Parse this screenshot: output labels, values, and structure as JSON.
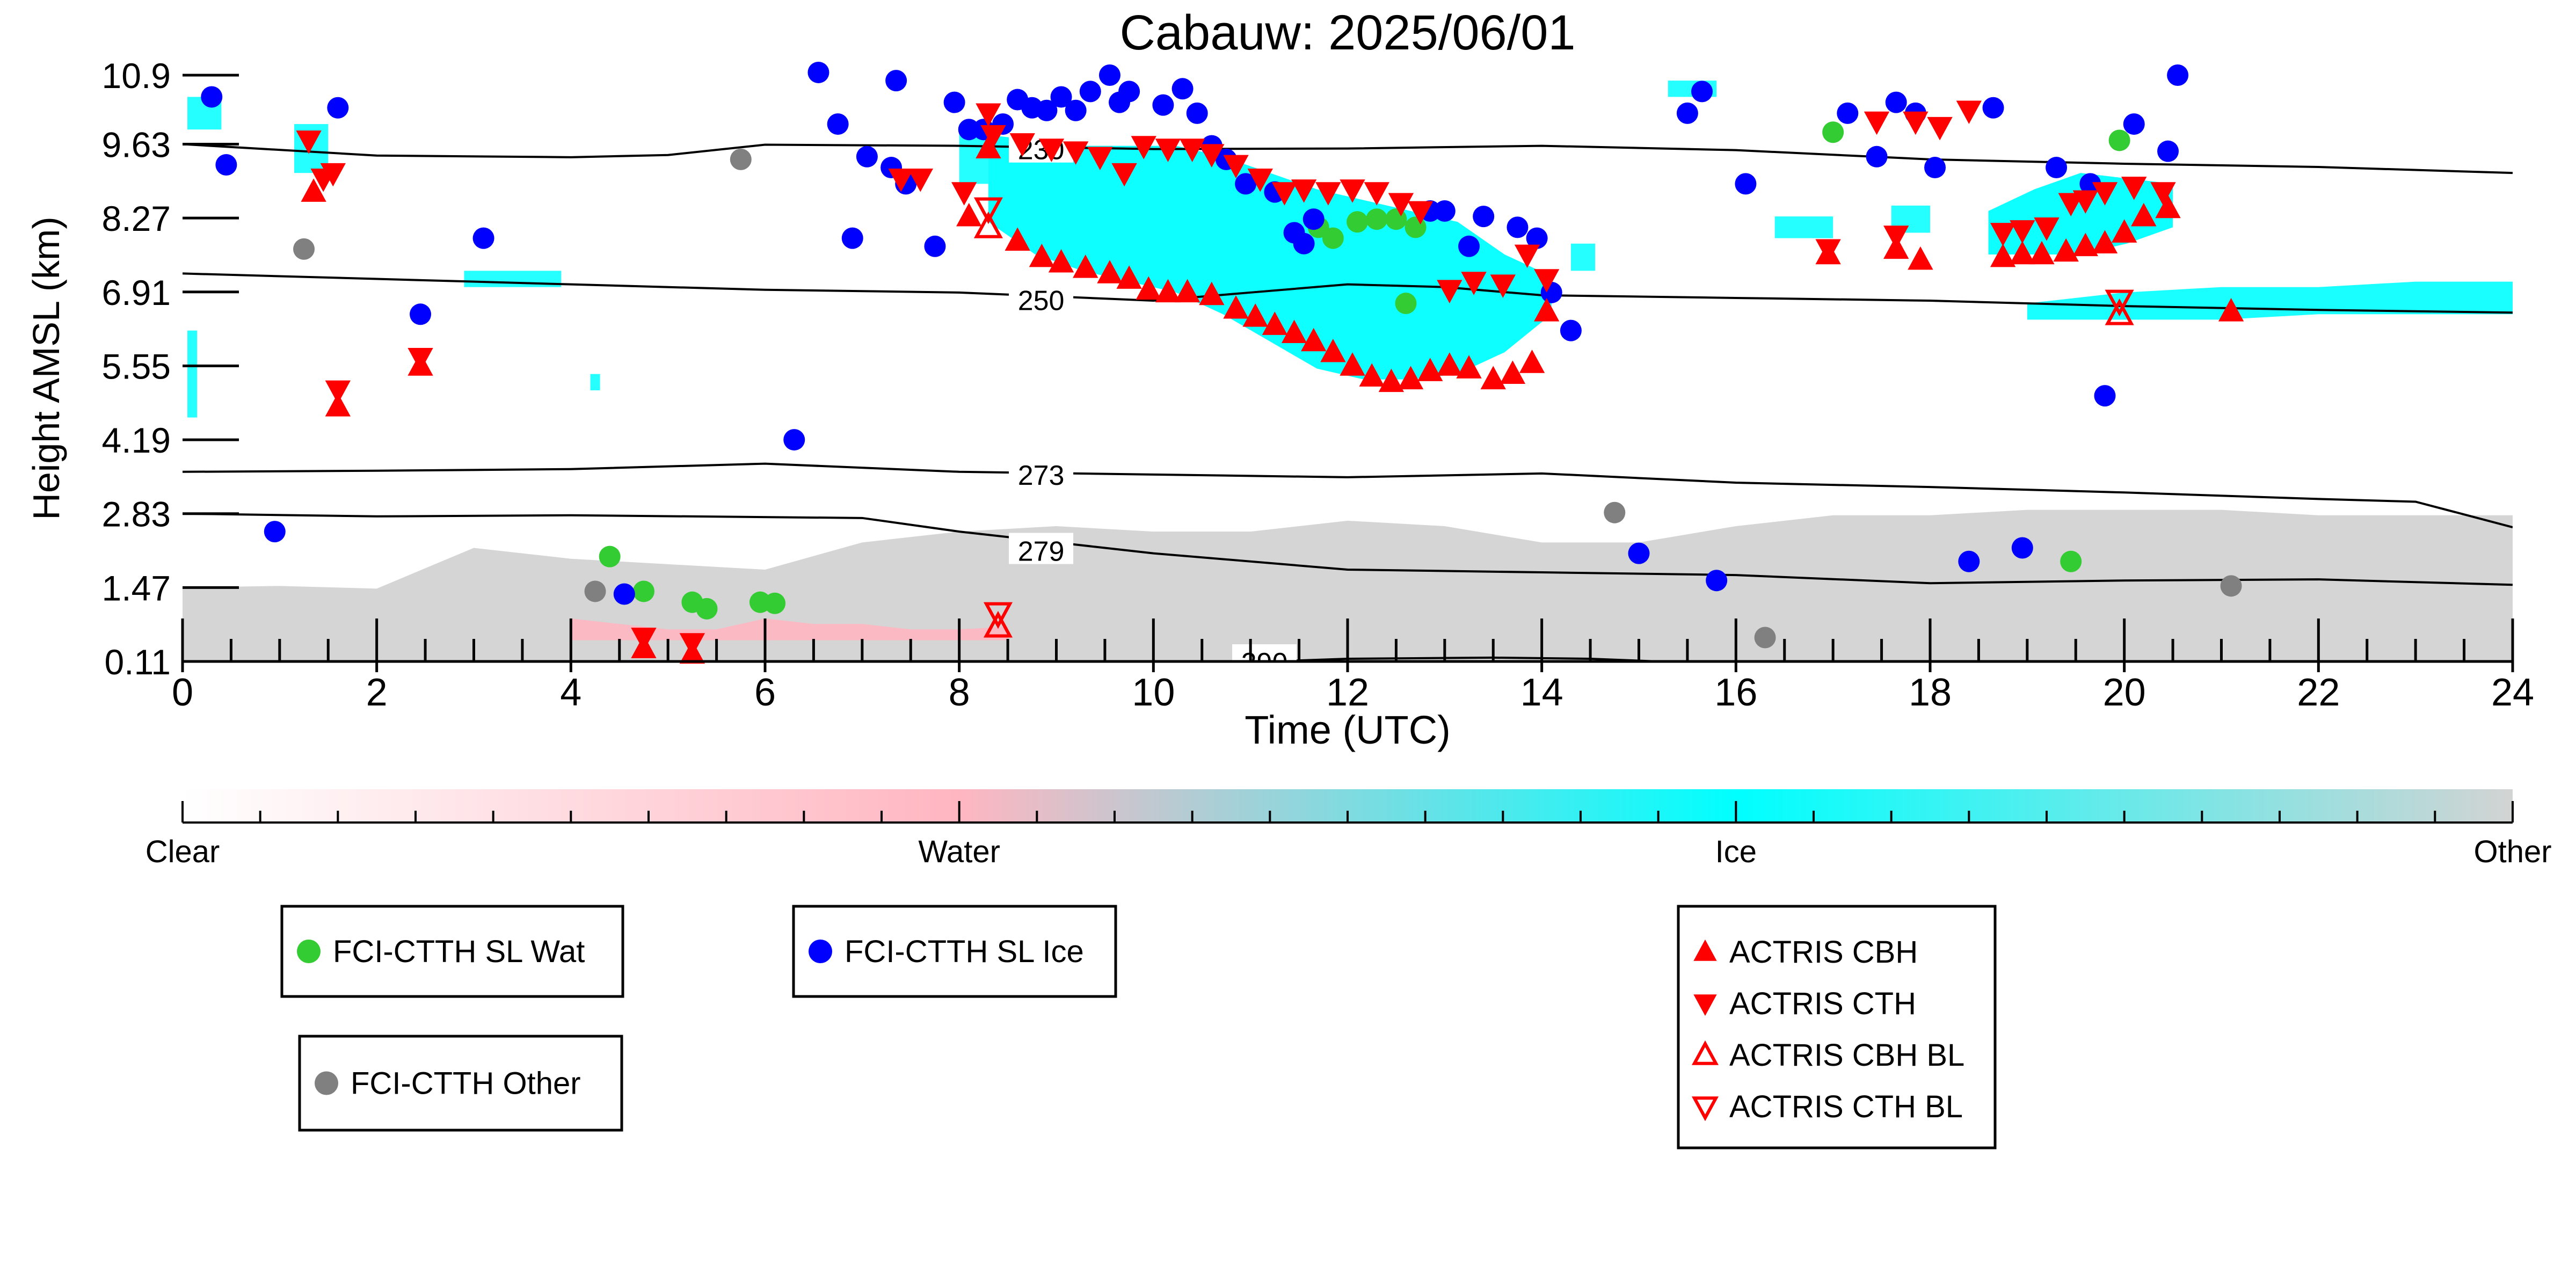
{
  "chart_data": {
    "type": "scatter",
    "title": "Cabauw: 2025/06/01",
    "xlabel": "Time (UTC)",
    "ylabel": "Height AMSL (km)",
    "xlim": [
      0,
      24
    ],
    "ylim": [
      0.11,
      10.9
    ],
    "x_ticks": [
      "0",
      "2",
      "4",
      "6",
      "8",
      "10",
      "12",
      "14",
      "16",
      "18",
      "20",
      "22",
      "24"
    ],
    "y_ticks": [
      "0.11",
      "1.47",
      "2.83",
      "4.19",
      "5.55",
      "6.91",
      "8.27",
      "9.63",
      "10.9"
    ],
    "colorbar": {
      "labels": [
        "Clear",
        "Water",
        "Ice",
        "Other"
      ],
      "colors": [
        "#ffffff",
        "#ffb6c1",
        "#00ffff",
        "#d3d3d3"
      ]
    },
    "isotherms": [
      {
        "label": "230",
        "x": [
          0,
          2,
          4,
          5,
          6,
          8,
          10,
          12,
          14,
          16,
          18,
          20,
          22,
          24
        ],
        "y": [
          9.63,
          9.42,
          9.39,
          9.43,
          9.62,
          9.6,
          9.54,
          9.55,
          9.6,
          9.52,
          9.35,
          9.27,
          9.21,
          9.1
        ]
      },
      {
        "label": "250",
        "x": [
          0,
          2,
          4,
          6,
          8,
          10,
          11,
          12,
          13,
          14,
          16,
          18,
          20,
          22,
          24
        ],
        "y": [
          7.25,
          7.15,
          7.05,
          6.95,
          6.9,
          6.75,
          6.9,
          7.05,
          7.0,
          6.85,
          6.8,
          6.75,
          6.65,
          6.58,
          6.53
        ]
      },
      {
        "label": "273",
        "x": [
          0,
          2,
          4,
          6,
          8,
          10,
          12,
          14,
          16,
          18,
          20,
          22,
          23,
          24
        ],
        "y": [
          3.6,
          3.62,
          3.65,
          3.75,
          3.6,
          3.55,
          3.5,
          3.57,
          3.4,
          3.32,
          3.22,
          3.1,
          3.05,
          2.58
        ]
      },
      {
        "label": "279",
        "x": [
          0,
          2,
          4,
          7,
          8,
          10,
          12,
          14,
          16,
          18,
          20,
          22,
          24
        ],
        "y": [
          2.83,
          2.78,
          2.8,
          2.75,
          2.5,
          2.1,
          1.8,
          1.75,
          1.7,
          1.55,
          1.6,
          1.62,
          1.52
        ]
      },
      {
        "label": "290",
        "x": [
          11.2,
          12,
          13.5,
          14.5,
          15.2
        ],
        "y": [
          0.11,
          0.16,
          0.18,
          0.16,
          0.11
        ]
      }
    ],
    "series": [
      {
        "name": "FCI-CTTH SL Wat",
        "marker": "circle",
        "color": "#33cc33",
        "x": [
          4.4,
          4.75,
          5.25,
          5.4,
          5.95,
          6.1,
          11.7,
          11.85,
          12.1,
          12.3,
          12.5,
          12.7,
          12.6,
          17.0,
          19.45,
          19.95
        ],
        "y": [
          2.04,
          1.4,
          1.2,
          1.08,
          1.2,
          1.18,
          8.1,
          7.9,
          8.2,
          8.25,
          8.25,
          8.1,
          6.7,
          9.85,
          1.95,
          9.7
        ]
      },
      {
        "name": "FCI-CTTH SL Ice",
        "marker": "circle",
        "color": "#0000ff",
        "x": [
          0.3,
          0.45,
          0.95,
          1.6,
          2.45,
          3.1,
          4.55,
          6.3,
          6.55,
          6.75,
          6.9,
          7.05,
          7.3,
          7.35,
          7.45,
          7.75,
          7.95,
          8.1,
          8.25,
          8.45,
          8.6,
          8.75,
          8.9,
          9.05,
          9.2,
          9.35,
          9.55,
          9.65,
          9.75,
          10.1,
          10.3,
          10.45,
          10.6,
          10.75,
          10.95,
          11.25,
          11.45,
          11.55,
          11.65,
          12.85,
          13.0,
          13.25,
          13.4,
          13.75,
          13.95,
          14.1,
          14.3,
          15.0,
          15.5,
          15.65,
          15.8,
          16.1,
          17.15,
          17.45,
          17.65,
          17.85,
          18.05,
          18.4,
          18.65,
          18.95,
          19.3,
          19.65,
          19.8,
          20.1,
          20.45,
          20.55
        ],
        "y": [
          10.5,
          9.25,
          2.5,
          10.3,
          6.5,
          7.9,
          1.35,
          4.19,
          10.95,
          10.0,
          7.9,
          9.4,
          9.2,
          10.8,
          8.9,
          7.75,
          10.4,
          9.9,
          9.9,
          10.0,
          10.45,
          10.3,
          10.25,
          10.5,
          10.25,
          10.6,
          10.9,
          10.4,
          10.6,
          10.35,
          10.65,
          10.2,
          9.6,
          9.35,
          8.9,
          8.75,
          8.0,
          7.8,
          8.25,
          8.4,
          8.4,
          7.75,
          8.3,
          8.1,
          7.9,
          6.9,
          6.2,
          2.1,
          10.2,
          10.6,
          1.6,
          8.9,
          10.2,
          9.4,
          10.4,
          10.2,
          9.2,
          1.95,
          10.3,
          2.2,
          9.2,
          8.9,
          5.0,
          10.0,
          9.5,
          10.9
        ]
      },
      {
        "name": "FCI-CTTH Other",
        "marker": "circle",
        "color": "#808080",
        "x": [
          1.25,
          4.25,
          5.75,
          14.75,
          16.3,
          21.1
        ],
        "y": [
          7.7,
          1.4,
          9.35,
          2.85,
          0.55,
          1.5
        ]
      },
      {
        "name": "ACTRIS CBH",
        "marker": "triangle-up",
        "color": "#ff0000",
        "filled": true,
        "x": [
          1.35,
          1.6,
          2.45,
          4.75,
          5.25,
          8.1,
          8.3,
          8.6,
          8.85,
          9.05,
          9.3,
          9.55,
          9.75,
          9.95,
          10.15,
          10.35,
          10.6,
          10.85,
          11.05,
          11.25,
          11.45,
          11.65,
          11.85,
          12.05,
          12.25,
          12.45,
          12.65,
          12.85,
          13.05,
          13.25,
          13.5,
          13.7,
          13.9,
          14.05,
          16.95,
          17.65,
          17.9,
          18.75,
          18.95,
          19.15,
          19.4,
          19.6,
          19.8,
          20.0,
          20.2,
          20.45,
          21.1
        ],
        "y": [
          8.75,
          4.8,
          5.55,
          0.35,
          0.25,
          8.3,
          9.55,
          7.85,
          7.55,
          7.45,
          7.35,
          7.25,
          7.15,
          6.95,
          6.9,
          6.9,
          6.85,
          6.6,
          6.45,
          6.3,
          6.15,
          6.0,
          5.8,
          5.55,
          5.35,
          5.25,
          5.3,
          5.45,
          5.55,
          5.5,
          5.3,
          5.4,
          5.6,
          6.55,
          7.6,
          7.7,
          7.5,
          7.55,
          7.6,
          7.6,
          7.65,
          7.75,
          7.8,
          8.0,
          8.3,
          8.45,
          6.55
        ]
      },
      {
        "name": "ACTRIS CTH",
        "marker": "triangle-down",
        "color": "#ff0000",
        "filled": true,
        "x": [
          1.3,
          1.45,
          1.55,
          1.6,
          2.45,
          4.75,
          5.25,
          7.4,
          7.6,
          8.05,
          8.3,
          8.35,
          8.65,
          8.95,
          9.2,
          9.45,
          9.7,
          9.9,
          10.15,
          10.4,
          10.6,
          10.85,
          11.1,
          11.35,
          11.55,
          11.8,
          12.05,
          12.3,
          12.55,
          12.75,
          13.05,
          13.3,
          13.6,
          13.85,
          14.05,
          16.95,
          17.45,
          17.65,
          17.85,
          18.1,
          18.4,
          18.75,
          18.95,
          19.2,
          19.45,
          19.6,
          19.8,
          20.1,
          20.4
        ],
        "y": [
          9.7,
          9.0,
          9.1,
          5.1,
          5.7,
          0.55,
          0.45,
          9.0,
          9.0,
          8.75,
          10.2,
          9.8,
          9.65,
          9.55,
          9.5,
          9.4,
          9.1,
          9.6,
          9.55,
          9.55,
          9.45,
          9.25,
          9.0,
          8.75,
          8.8,
          8.75,
          8.8,
          8.75,
          8.55,
          8.4,
          6.95,
          7.1,
          7.05,
          7.6,
          7.15,
          7.7,
          10.05,
          7.95,
          10.05,
          9.95,
          10.25,
          8.0,
          8.05,
          8.1,
          8.55,
          8.6,
          8.75,
          8.85,
          8.75
        ]
      },
      {
        "name": "ACTRIS CBH BL",
        "marker": "triangle-up",
        "color": "#ff0000",
        "filled": false,
        "x": [
          8.3,
          8.4,
          19.95
        ],
        "y": [
          8.1,
          0.75,
          6.5
        ]
      },
      {
        "name": "ACTRIS CTH BL",
        "marker": "triangle-down",
        "color": "#ff0000",
        "filled": false,
        "x": [
          8.3,
          8.4,
          19.95
        ],
        "y": [
          8.45,
          1.0,
          6.75
        ]
      }
    ],
    "legends": [
      {
        "entries": [
          "FCI-CTTH SL Wat"
        ],
        "placement": "below-left"
      },
      {
        "entries": [
          "FCI-CTTH SL Ice"
        ],
        "placement": "below-center-left"
      },
      {
        "entries": [
          "FCI-CTTH Other"
        ],
        "placement": "below-left"
      },
      {
        "entries": [
          "ACTRIS CBH",
          "ACTRIS CTH",
          "ACTRIS CBH BL",
          "ACTRIS CTH BL"
        ],
        "placement": "below-right"
      }
    ],
    "grid": false
  }
}
